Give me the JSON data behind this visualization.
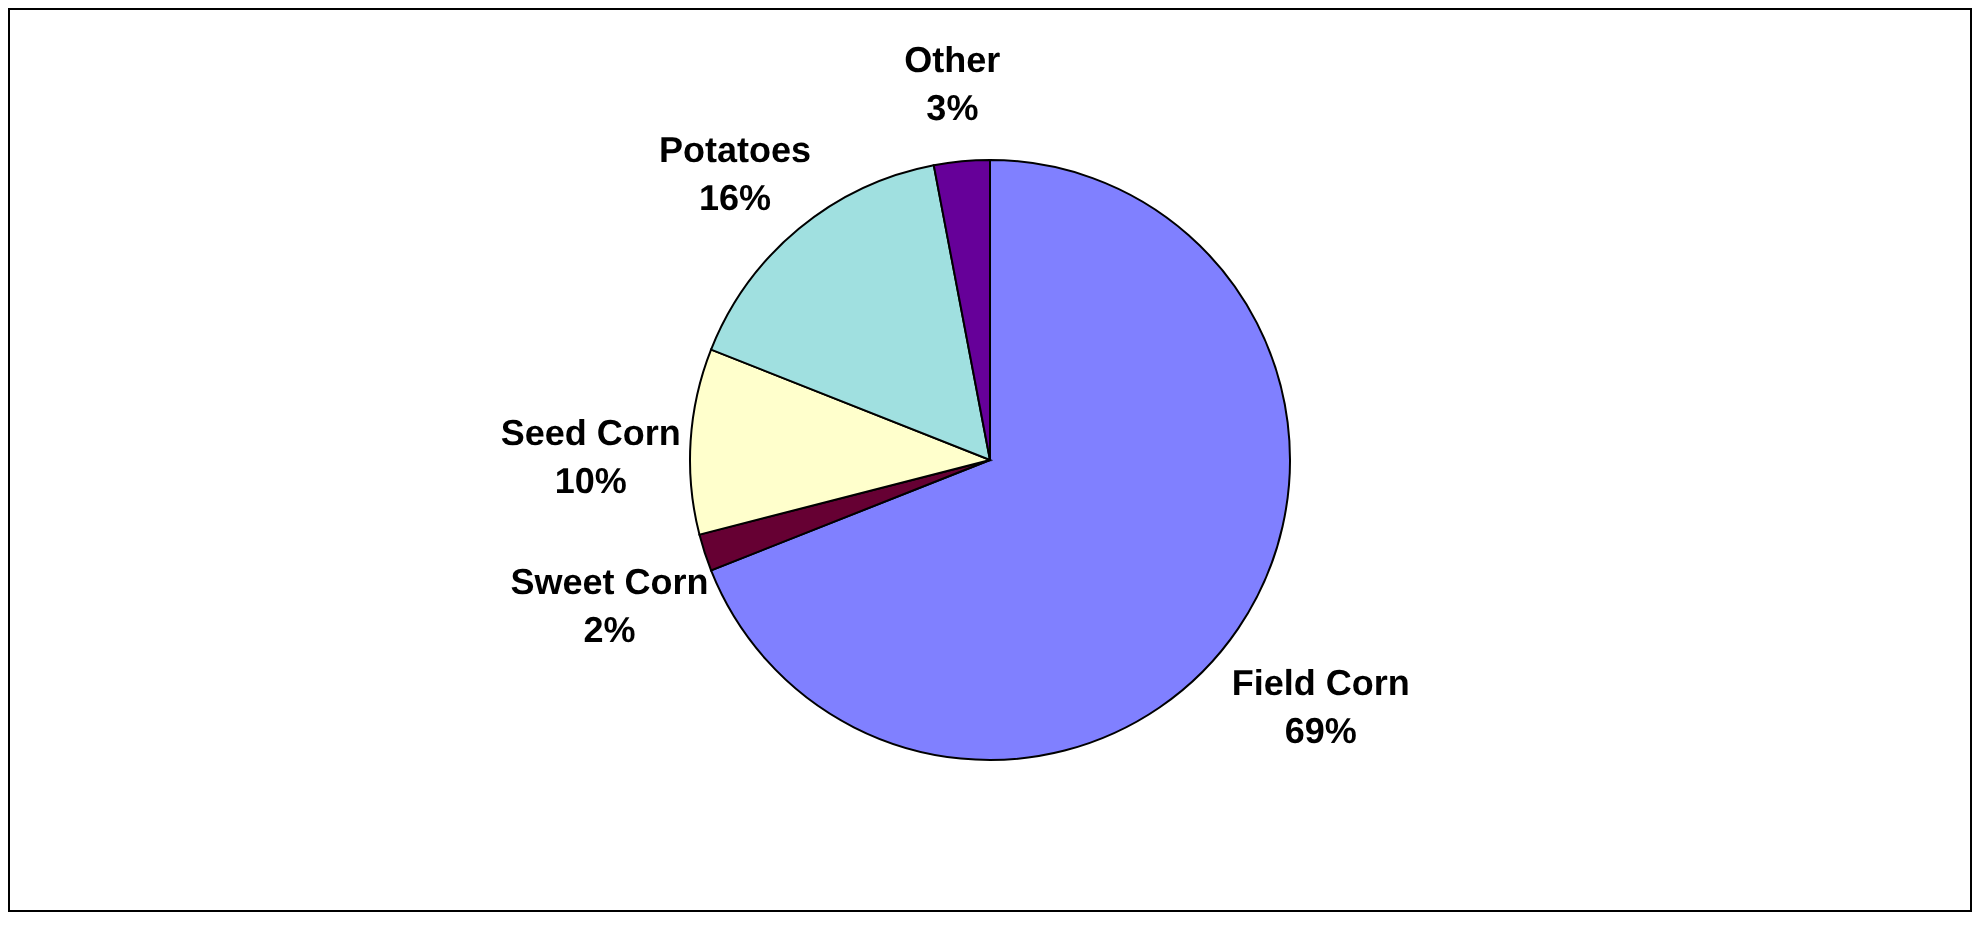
{
  "chart_data": {
    "type": "pie",
    "categories": [
      "Field Corn",
      "Sweet Corn",
      "Seed Corn",
      "Potatoes",
      "Other"
    ],
    "values": [
      69,
      2,
      10,
      16,
      3
    ],
    "value_labels": [
      "69%",
      "2%",
      "10%",
      "16%",
      "3%"
    ],
    "colors": [
      "#8080ff",
      "#660033",
      "#ffffcc",
      "#a0e0e0",
      "#660099"
    ]
  }
}
